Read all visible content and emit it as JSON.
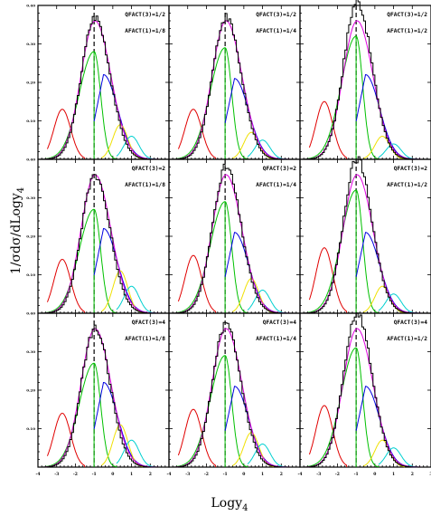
{
  "figure": {
    "xlabel": "Logy",
    "xlabel_sub": "4",
    "ylabel": "1/σdσ/dLogy",
    "ylabel_sub": "4"
  },
  "chart_data": {
    "type": "line",
    "layout": "3x3 grid of panels",
    "xlim": [
      -4,
      3
    ],
    "ylim": [
      0,
      0.4
    ],
    "x_ticks": [
      "-4",
      "-3",
      "-2",
      "-1",
      "0",
      "1",
      "2",
      "3"
    ],
    "y_ticks": [
      "0.00",
      "0.10",
      "0.20",
      "0.30",
      "0.40"
    ],
    "dashed_vertical_line_x": -1,
    "colors": {
      "total_histogram": "#000000",
      "reference": "#e000e0",
      "red": "#e00000",
      "green": "#00c000",
      "blue": "#0000e0",
      "yellow": "#f0e000",
      "cyan": "#00d0d0"
    },
    "component_centers": {
      "red": -2.7,
      "green": -1.0,
      "blue": -0.5,
      "yellow": 0.4,
      "cyan": 1.0
    },
    "reference_peak": {
      "x": -0.95,
      "y": 0.36
    },
    "panels": [
      {
        "row": 0,
        "col": 0,
        "qfact": "QFACT(3)=1/2",
        "afact": "AFACT(1)=1/8",
        "peaks": {
          "black": 0.37,
          "red": 0.13,
          "green": 0.28,
          "blue": 0.22,
          "yellow": 0.09,
          "cyan": 0.06
        }
      },
      {
        "row": 0,
        "col": 1,
        "qfact": "QFACT(3)=1/2",
        "afact": "AFACT(1)=1/4",
        "peaks": {
          "black": 0.37,
          "red": 0.13,
          "green": 0.29,
          "blue": 0.21,
          "yellow": 0.07,
          "cyan": 0.05
        }
      },
      {
        "row": 0,
        "col": 2,
        "qfact": "QFACT(3)=1/2",
        "afact": "AFACT(1)=1/2",
        "peaks": {
          "black": 0.41,
          "red": 0.15,
          "green": 0.32,
          "blue": 0.22,
          "yellow": 0.06,
          "cyan": 0.04
        }
      },
      {
        "row": 1,
        "col": 0,
        "qfact": "QFACT(3)=2",
        "afact": "AFACT(1)=1/8",
        "peaks": {
          "black": 0.36,
          "red": 0.14,
          "green": 0.27,
          "blue": 0.22,
          "yellow": 0.11,
          "cyan": 0.07
        }
      },
      {
        "row": 1,
        "col": 1,
        "qfact": "QFACT(3)=2",
        "afact": "AFACT(1)=1/4",
        "peaks": {
          "black": 0.38,
          "red": 0.15,
          "green": 0.29,
          "blue": 0.21,
          "yellow": 0.09,
          "cyan": 0.06
        }
      },
      {
        "row": 1,
        "col": 2,
        "qfact": "QFACT(3)=2",
        "afact": "AFACT(1)=1/2",
        "peaks": {
          "black": 0.4,
          "red": 0.17,
          "green": 0.32,
          "blue": 0.21,
          "yellow": 0.07,
          "cyan": 0.05
        }
      },
      {
        "row": 2,
        "col": 0,
        "qfact": "QFACT(3)=4",
        "afact": "AFACT(1)=1/8",
        "peaks": {
          "black": 0.36,
          "red": 0.14,
          "green": 0.27,
          "blue": 0.22,
          "yellow": 0.11,
          "cyan": 0.07
        }
      },
      {
        "row": 2,
        "col": 1,
        "qfact": "QFACT(3)=4",
        "afact": "AFACT(1)=1/4",
        "peaks": {
          "black": 0.37,
          "red": 0.15,
          "green": 0.29,
          "blue": 0.21,
          "yellow": 0.09,
          "cyan": 0.06
        }
      },
      {
        "row": 2,
        "col": 2,
        "qfact": "QFACT(3)=4",
        "afact": "AFACT(1)=1/2",
        "peaks": {
          "black": 0.4,
          "red": 0.16,
          "green": 0.31,
          "blue": 0.21,
          "yellow": 0.07,
          "cyan": 0.05
        }
      }
    ]
  }
}
